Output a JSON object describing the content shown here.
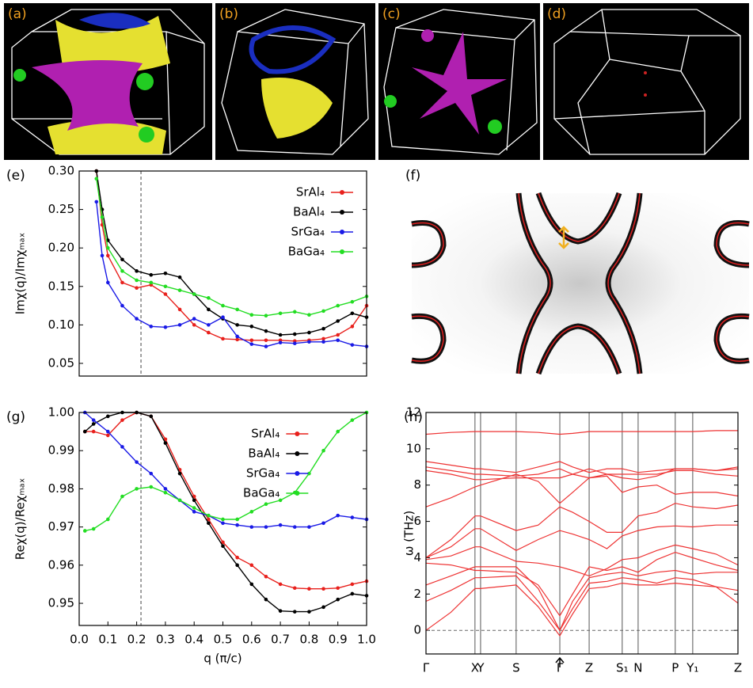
{
  "panel_labels": [
    "(a)",
    "(b)",
    "(c)",
    "(d)",
    "(f)"
  ],
  "chart_data": [
    {
      "type": "line",
      "label": "(e)",
      "ylabel": "Imχ(q)/Imχₘₐₓ",
      "markers": true,
      "legend": "upper right",
      "xlim": [
        0,
        1
      ],
      "ylim": [
        0.0335,
        0.3
      ],
      "yticks": [
        0.05,
        {
          "value": 0.1,
          "label": "0.10"
        },
        0.15,
        {
          "value": 0.2,
          "label": "0.20"
        },
        0.25,
        {
          "value": 0.3,
          "label": "0.30"
        }
      ],
      "vline": 0.215,
      "x": [
        0.06,
        0.08,
        0.1,
        0.15,
        0.2,
        0.25,
        0.3,
        0.35,
        0.4,
        0.45,
        0.5,
        0.55,
        0.6,
        0.65,
        0.7,
        0.75,
        0.8,
        0.85,
        0.9,
        0.95,
        1.0
      ],
      "series": [
        {
          "name": "SrAl₄",
          "color": "#e8201c",
          "values": [
            0.3,
            0.23,
            0.19,
            0.155,
            0.148,
            0.152,
            0.14,
            0.12,
            0.1,
            0.09,
            0.082,
            0.081,
            0.08,
            0.08,
            0.08,
            0.079,
            0.08,
            0.082,
            0.087,
            0.098,
            0.125
          ]
        },
        {
          "name": "BaAl₄",
          "color": "#000000",
          "values": [
            0.3,
            0.25,
            0.21,
            0.185,
            0.17,
            0.165,
            0.167,
            0.162,
            0.14,
            0.12,
            0.108,
            0.1,
            0.098,
            0.092,
            0.087,
            0.088,
            0.09,
            0.095,
            0.105,
            0.115,
            0.11
          ]
        },
        {
          "name": "SrGa₄",
          "color": "#1a1ae6",
          "values": [
            0.26,
            0.19,
            0.155,
            0.125,
            0.108,
            0.098,
            0.097,
            0.1,
            0.108,
            0.1,
            0.11,
            0.085,
            0.075,
            0.072,
            0.077,
            0.076,
            0.078,
            0.078,
            0.08,
            0.074,
            0.072
          ]
        },
        {
          "name": "BaGa₄",
          "color": "#22dd22",
          "values": [
            0.29,
            0.24,
            0.2,
            0.17,
            0.158,
            0.155,
            0.15,
            0.145,
            0.14,
            0.135,
            0.125,
            0.12,
            0.113,
            0.112,
            0.115,
            0.117,
            0.113,
            0.118,
            0.125,
            0.13,
            0.137
          ]
        }
      ]
    },
    {
      "type": "line",
      "label": "(g)",
      "ylabel": "Reχ(q)/Reχₘₐₓ",
      "xlabel": "q (π/c)",
      "markers": true,
      "legend": "upper center",
      "xlim": [
        0,
        1
      ],
      "ylim": [
        0.9442,
        1.0
      ],
      "xticks": [
        {
          "value": 0,
          "label": "0.0"
        },
        0.1,
        0.2,
        0.3,
        0.4,
        0.5,
        0.6,
        0.7,
        0.8,
        0.9,
        {
          "value": 1,
          "label": "1.0"
        }
      ],
      "yticks": [
        0.95,
        0.96,
        0.97,
        0.98,
        0.99,
        {
          "value": 1,
          "label": "1.00"
        }
      ],
      "vline": 0.215,
      "x": [
        0.02,
        0.05,
        0.1,
        0.15,
        0.2,
        0.25,
        0.3,
        0.35,
        0.4,
        0.45,
        0.5,
        0.55,
        0.6,
        0.65,
        0.7,
        0.75,
        0.8,
        0.85,
        0.9,
        0.95,
        1.0
      ],
      "series": [
        {
          "name": "SrAl₄",
          "color": "#e8201c",
          "values": [
            0.995,
            0.995,
            0.994,
            0.998,
            1.0,
            0.999,
            0.993,
            0.985,
            0.978,
            0.972,
            0.966,
            0.962,
            0.96,
            0.957,
            0.955,
            0.954,
            0.9538,
            0.9538,
            0.954,
            0.955,
            0.9558
          ]
        },
        {
          "name": "BaAl₄",
          "color": "#000000",
          "values": [
            0.995,
            0.997,
            0.999,
            1.0,
            1.0,
            0.999,
            0.992,
            0.984,
            0.977,
            0.971,
            0.965,
            0.96,
            0.955,
            0.951,
            0.948,
            0.9478,
            0.9478,
            0.949,
            0.951,
            0.9525,
            0.952
          ]
        },
        {
          "name": "SrGa₄",
          "color": "#1a1ae6",
          "values": [
            1.0,
            0.998,
            0.995,
            0.991,
            0.987,
            0.984,
            0.98,
            0.977,
            0.974,
            0.973,
            0.971,
            0.9705,
            0.97,
            0.97,
            0.9705,
            0.97,
            0.97,
            0.971,
            0.973,
            0.9725,
            0.972
          ]
        },
        {
          "name": "BaGa₄",
          "color": "#22dd22",
          "values": [
            0.969,
            0.9695,
            0.972,
            0.978,
            0.98,
            0.9805,
            0.979,
            0.977,
            0.975,
            0.973,
            0.972,
            0.972,
            0.974,
            0.976,
            0.977,
            0.979,
            0.984,
            0.99,
            0.995,
            0.998,
            1.0
          ]
        }
      ]
    },
    {
      "type": "line",
      "label": "(h)",
      "ylabel": "ω (THz)",
      "xgrid": true,
      "hline": 0,
      "xlim": [
        0,
        1
      ],
      "ylim": [
        -1.3,
        12
      ],
      "xticks": [
        {
          "value": 0,
          "label": "Γ"
        },
        {
          "value": 0.157,
          "label": "X"
        },
        {
          "value": 0.175,
          "label": "Y"
        },
        {
          "value": 0.289,
          "label": "S"
        },
        {
          "value": 0.429,
          "label": "Γ"
        },
        {
          "value": 0.523,
          "label": "Z"
        },
        {
          "value": 0.629,
          "label": "S₁"
        },
        {
          "value": 0.68,
          "label": "N"
        },
        {
          "value": 0.799,
          "label": "P"
        },
        {
          "value": 0.855,
          "label": "Y₁"
        },
        {
          "value": 1,
          "label": "Z"
        }
      ],
      "yticks": [
        0,
        2,
        4,
        6,
        8,
        10,
        12
      ],
      "x": [
        0,
        0.08,
        0.157,
        0.175,
        0.289,
        0.36,
        0.429,
        0.47,
        0.523,
        0.58,
        0.629,
        0.68,
        0.74,
        0.799,
        0.855,
        0.93,
        1.0
      ],
      "series": [
        {
          "color": "#ee3333",
          "values": [
            10.8,
            10.9,
            10.95,
            10.95,
            10.95,
            10.9,
            10.8,
            10.85,
            10.95,
            10.95,
            10.95,
            10.95,
            10.95,
            10.95,
            10.95,
            11,
            11
          ]
        },
        {
          "color": "#ee3333",
          "values": [
            9.3,
            9.1,
            8.9,
            8.9,
            8.7,
            9.0,
            9.3,
            9.0,
            8.7,
            8.9,
            8.9,
            8.7,
            8.8,
            8.9,
            8.9,
            8.8,
            8.9
          ]
        },
        {
          "color": "#ee3333",
          "values": [
            9.0,
            8.8,
            8.6,
            8.6,
            8.5,
            8.6,
            8.9,
            8.6,
            8.4,
            8.6,
            8.6,
            8.6,
            8.6,
            8.8,
            8.8,
            8.6,
            8.5
          ]
        },
        {
          "color": "#ee3333",
          "values": [
            8.8,
            8.6,
            8.3,
            8.3,
            8.4,
            8.4,
            8.4,
            8.6,
            8.9,
            8.6,
            8.4,
            8.3,
            8.5,
            8.9,
            8.9,
            8.8,
            9.0
          ]
        },
        {
          "color": "#ee3333",
          "values": [
            6.8,
            7.3,
            7.9,
            8.0,
            8.6,
            8.2,
            7.0,
            7.6,
            8.4,
            8.5,
            7.6,
            7.9,
            8.0,
            7.5,
            7.6,
            7.6,
            7.4
          ]
        },
        {
          "color": "#ee3333",
          "values": [
            4.0,
            5.0,
            6.3,
            6.3,
            5.5,
            5.8,
            6.8,
            6.5,
            6.0,
            5.4,
            5.4,
            6.3,
            6.5,
            7.0,
            6.8,
            6.7,
            6.9
          ]
        },
        {
          "color": "#ee3333",
          "values": [
            4.0,
            4.6,
            5.6,
            5.6,
            4.4,
            5.0,
            5.5,
            5.3,
            5.0,
            4.5,
            5.2,
            5.5,
            5.7,
            5.75,
            5.7,
            5.8,
            5.8
          ]
        },
        {
          "color": "#ee3333",
          "values": [
            3.9,
            4.1,
            4.6,
            4.6,
            3.8,
            3.7,
            3.5,
            3.3,
            3.0,
            3.4,
            3.9,
            4.0,
            4.4,
            4.7,
            4.5,
            4.2,
            3.6
          ]
        },
        {
          "color": "#ee3333",
          "values": [
            3.7,
            3.6,
            3.3,
            3.3,
            3.2,
            2.5,
            0.8,
            2.0,
            3.5,
            3.3,
            3.5,
            3.2,
            3.9,
            4.3,
            4.0,
            3.6,
            3.3
          ]
        },
        {
          "color": "#ee3333",
          "values": [
            2.5,
            3.0,
            3.5,
            3.5,
            3.5,
            2.3,
            0.0,
            1.6,
            2.9,
            3.1,
            3.2,
            3.0,
            3.2,
            3.3,
            3.1,
            3.2,
            3.2
          ]
        },
        {
          "color": "#ee3333",
          "values": [
            1.6,
            2.2,
            2.9,
            2.9,
            3.0,
            1.6,
            0.0,
            1.2,
            2.6,
            2.7,
            2.9,
            2.8,
            2.6,
            2.9,
            2.8,
            2.4,
            1.5
          ]
        },
        {
          "color": "#ee3333",
          "values": [
            0,
            1.0,
            2.3,
            2.3,
            2.5,
            1.3,
            -0.3,
            0.9,
            2.3,
            2.4,
            2.6,
            2.5,
            2.5,
            2.6,
            2.5,
            2.4,
            2.2
          ]
        }
      ]
    }
  ]
}
